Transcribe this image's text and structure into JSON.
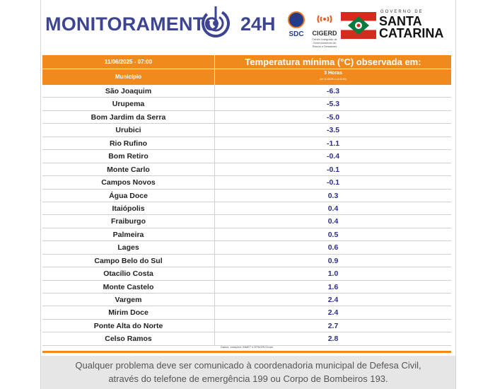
{
  "header": {
    "brand_left": "MONITORAMENTO",
    "brand_right": "24H",
    "sdc_label": "SDC",
    "cigerd_label": "CIGERD",
    "cigerd_sub": "Centro Integrado de Gerenciamento de Riscos e Desastres",
    "gov_small": "GOVERNO DE",
    "gov_line1": "SANTA",
    "gov_line2": "CATARINA"
  },
  "table": {
    "date": "11/06/2025 - 07:00",
    "title": "Temperatura mínima (°C) observada em:",
    "col_municipio": "Município",
    "period": "3 Horas",
    "period_sub": "(de 11/06/25 a 11/11/40)",
    "rows": [
      {
        "city": "São Joaquim",
        "value": "-6.3"
      },
      {
        "city": "Urupema",
        "value": "-5.3"
      },
      {
        "city": "Bom Jardim da Serra",
        "value": "-5.0"
      },
      {
        "city": "Urubici",
        "value": "-3.5"
      },
      {
        "city": "Rio Rufino",
        "value": "-1.1"
      },
      {
        "city": "Bom Retiro",
        "value": "-0.4"
      },
      {
        "city": "Monte Carlo",
        "value": "-0.1"
      },
      {
        "city": "Campos Novos",
        "value": "-0.1"
      },
      {
        "city": "Água Doce",
        "value": "0.3"
      },
      {
        "city": "Itaiópolis",
        "value": "0.4"
      },
      {
        "city": "Fraiburgo",
        "value": "0.4"
      },
      {
        "city": "Palmeira",
        "value": "0.5"
      },
      {
        "city": "Lages",
        "value": "0.6"
      },
      {
        "city": "Campo Belo do Sul",
        "value": "0.9"
      },
      {
        "city": "Otacílio Costa",
        "value": "1.0"
      },
      {
        "city": "Monte Castelo",
        "value": "1.6"
      },
      {
        "city": "Vargem",
        "value": "2.4"
      },
      {
        "city": "Mirim Doce",
        "value": "2.4"
      },
      {
        "city": "Ponte Alta do Norte",
        "value": "2.7"
      },
      {
        "city": "Celso Ramos",
        "value": "2.8"
      }
    ],
    "source": "Dados: estações INMET e EPAGRI/Ciram"
  },
  "footer": {
    "line1": "Qualquer problema deve ser comunicado à coordenadoria municipal de Defesa Civil,",
    "line2": "através do telefone de emergência 199 ou Corpo de Bombeiros 193."
  },
  "colors": {
    "brand_blue": "#3d4593",
    "header_orange": "#f08a1c",
    "value_blue": "#2c2f8a"
  }
}
